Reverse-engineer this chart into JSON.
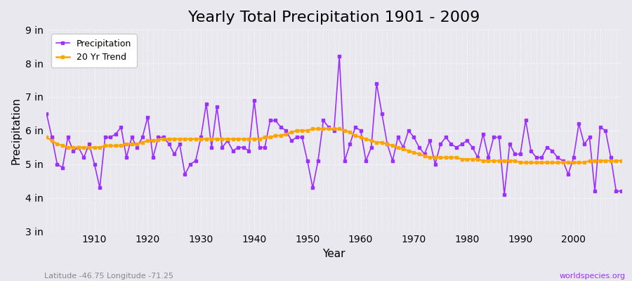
{
  "title": "Yearly Total Precipitation 1901 - 2009",
  "xlabel": "Year",
  "ylabel": "Precipitation",
  "footnote_left": "Latitude -46.75 Longitude -71.25",
  "footnote_right": "worldspecies.org",
  "ylim": [
    3,
    9
  ],
  "yticks": [
    3,
    4,
    5,
    6,
    7,
    8,
    9
  ],
  "ytick_labels": [
    "3 in",
    "4 in",
    "5 in",
    "6 in",
    "7 in",
    "8 in",
    "9 in"
  ],
  "xticks": [
    1910,
    1920,
    1930,
    1940,
    1950,
    1960,
    1970,
    1980,
    1990,
    2000
  ],
  "xlim": [
    1901,
    2009
  ],
  "years": [
    1901,
    1902,
    1903,
    1904,
    1905,
    1906,
    1907,
    1908,
    1909,
    1910,
    1911,
    1912,
    1913,
    1914,
    1915,
    1916,
    1917,
    1918,
    1919,
    1920,
    1921,
    1922,
    1923,
    1924,
    1925,
    1926,
    1927,
    1928,
    1929,
    1930,
    1931,
    1932,
    1933,
    1934,
    1935,
    1936,
    1937,
    1938,
    1939,
    1940,
    1941,
    1942,
    1943,
    1944,
    1945,
    1946,
    1947,
    1948,
    1949,
    1950,
    1951,
    1952,
    1953,
    1954,
    1955,
    1956,
    1957,
    1958,
    1959,
    1960,
    1961,
    1962,
    1963,
    1964,
    1965,
    1966,
    1967,
    1968,
    1969,
    1970,
    1971,
    1972,
    1973,
    1974,
    1975,
    1976,
    1977,
    1978,
    1979,
    1980,
    1981,
    1982,
    1983,
    1984,
    1985,
    1986,
    1987,
    1988,
    1989,
    1990,
    1991,
    1992,
    1993,
    1994,
    1995,
    1996,
    1997,
    1998,
    1999,
    2000,
    2001,
    2002,
    2003,
    2004,
    2005,
    2006,
    2007,
    2008,
    2009
  ],
  "precip": [
    6.5,
    5.8,
    5.0,
    4.9,
    5.8,
    5.4,
    5.5,
    5.2,
    5.6,
    5.0,
    4.3,
    5.8,
    5.8,
    5.9,
    6.1,
    5.2,
    5.8,
    5.5,
    5.8,
    6.4,
    5.2,
    5.8,
    5.8,
    5.6,
    5.3,
    5.6,
    4.7,
    5.0,
    5.1,
    5.8,
    6.8,
    5.5,
    6.7,
    5.5,
    5.7,
    5.4,
    5.5,
    5.5,
    5.4,
    6.9,
    5.5,
    5.5,
    6.3,
    6.3,
    6.1,
    6.0,
    5.7,
    5.8,
    5.8,
    5.1,
    4.3,
    5.1,
    6.3,
    6.1,
    6.0,
    8.2,
    5.1,
    5.6,
    6.1,
    6.0,
    5.1,
    5.5,
    7.4,
    6.5,
    5.6,
    5.1,
    5.8,
    5.5,
    6.0,
    5.8,
    5.5,
    5.3,
    5.7,
    5.0,
    5.6,
    5.8,
    5.6,
    5.5,
    5.6,
    5.7,
    5.5,
    5.2,
    5.9,
    5.2,
    5.8,
    5.8,
    4.1,
    5.6,
    5.3,
    5.3,
    6.3,
    5.4,
    5.2,
    5.2,
    5.5,
    5.4,
    5.2,
    5.1,
    4.7,
    5.2,
    6.2,
    5.6,
    5.8,
    4.2,
    6.1,
    6.0,
    5.2,
    4.2,
    4.2
  ],
  "trend": [
    5.8,
    5.7,
    5.6,
    5.55,
    5.5,
    5.5,
    5.5,
    5.5,
    5.5,
    5.5,
    5.5,
    5.55,
    5.55,
    5.55,
    5.55,
    5.6,
    5.6,
    5.6,
    5.65,
    5.7,
    5.7,
    5.72,
    5.75,
    5.75,
    5.75,
    5.75,
    5.75,
    5.75,
    5.75,
    5.75,
    5.75,
    5.75,
    5.75,
    5.75,
    5.75,
    5.75,
    5.75,
    5.75,
    5.75,
    5.75,
    5.75,
    5.8,
    5.8,
    5.85,
    5.85,
    5.9,
    5.95,
    6.0,
    6.0,
    6.0,
    6.05,
    6.05,
    6.05,
    6.05,
    6.05,
    6.05,
    6.0,
    5.95,
    5.85,
    5.8,
    5.75,
    5.7,
    5.65,
    5.65,
    5.6,
    5.55,
    5.5,
    5.45,
    5.4,
    5.35,
    5.3,
    5.25,
    5.2,
    5.2,
    5.2,
    5.2,
    5.2,
    5.2,
    5.15,
    5.15,
    5.15,
    5.15,
    5.1,
    5.1,
    5.1,
    5.1,
    5.1,
    5.1,
    5.1,
    5.05,
    5.05,
    5.05,
    5.05,
    5.05,
    5.05,
    5.05,
    5.05,
    5.05,
    5.05,
    5.05,
    5.05,
    5.05,
    5.1,
    5.1,
    5.1,
    5.1,
    5.1,
    5.1,
    5.1
  ],
  "precip_color": "#9B30FF",
  "trend_color": "#FFA500",
  "bg_color": "#E8E8EE",
  "grid_color": "#FFFFFF",
  "legend_bg": "#FFFFFF",
  "title_fontsize": 16,
  "axis_fontsize": 11,
  "tick_fontsize": 10
}
